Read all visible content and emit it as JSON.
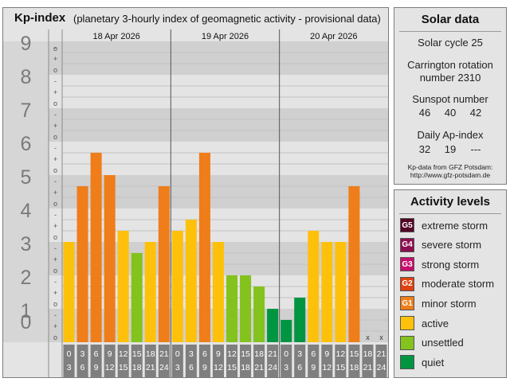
{
  "kp_panel": {
    "title": "Kp-index",
    "subtitle": "(planetary 3-hourly index of geomagnetic activity - provisional data)"
  },
  "chart_data": {
    "type": "bar",
    "title": "Kp-index",
    "subtitle": "(planetary 3-hourly index of geomagnetic activity - provisional data)",
    "ylim": [
      0,
      9
    ],
    "y_ticks": [
      "0",
      "1",
      "2",
      "3",
      "4",
      "5",
      "6",
      "7",
      "8",
      "9"
    ],
    "sub_ticks": [
      "-",
      "o",
      "+"
    ],
    "days": [
      "18 Apr 2026",
      "19 Apr 2026",
      "20 Apr 2026"
    ],
    "interval_labels": [
      [
        "0",
        "3"
      ],
      [
        "3",
        "6"
      ],
      [
        "6",
        "9"
      ],
      [
        "9",
        "12"
      ],
      [
        "12",
        "15"
      ],
      [
        "15",
        "18"
      ],
      [
        "18",
        "21"
      ],
      [
        "21",
        "24"
      ]
    ],
    "missing_mark": "x",
    "values": [
      3.0,
      4.667,
      5.667,
      5.0,
      3.333,
      2.667,
      3.0,
      4.667,
      3.333,
      3.667,
      5.667,
      3.0,
      2.0,
      2.0,
      1.667,
      1.0,
      0.667,
      1.333,
      3.333,
      3.0,
      3.0,
      4.667,
      null,
      null
    ],
    "colors": {
      "quiet": "#009541",
      "unsettled": "#84c21e",
      "active": "#fec10b",
      "minor": "#ef7d1a",
      "moderate": "#de4211",
      "strong": "#c60e6c",
      "severe": "#8c0e50",
      "extreme": "#520525"
    }
  },
  "solar_data": {
    "title": "Solar data",
    "solar_cycle": "Solar cycle 25",
    "carrington_line1": "Carrington rotation",
    "carrington_line2": "number 2310",
    "sunspot_title": "Sunspot number",
    "sunspot_values": [
      "46",
      "40",
      "42"
    ],
    "ap_title": "Daily Ap-index",
    "ap_values": [
      "32",
      "19",
      "---"
    ],
    "source_line1": "Kp-data from GFZ Potsdam:",
    "source_line2": "http://www.gfz-potsdam.de"
  },
  "activity_levels": {
    "title": "Activity levels",
    "items": [
      {
        "code": "G5",
        "label": "extreme storm",
        "color": "#520525"
      },
      {
        "code": "G4",
        "label": "severe storm",
        "color": "#8c0e50"
      },
      {
        "code": "G3",
        "label": "strong storm",
        "color": "#c60e6c"
      },
      {
        "code": "G2",
        "label": "moderate storm",
        "color": "#de4211"
      },
      {
        "code": "G1",
        "label": "minor storm",
        "color": "#ef7d1a"
      },
      {
        "code": "",
        "label": "active",
        "color": "#fec10b"
      },
      {
        "code": "",
        "label": "unsettled",
        "color": "#84c21e"
      },
      {
        "code": "",
        "label": "quiet",
        "color": "#009541"
      }
    ]
  }
}
